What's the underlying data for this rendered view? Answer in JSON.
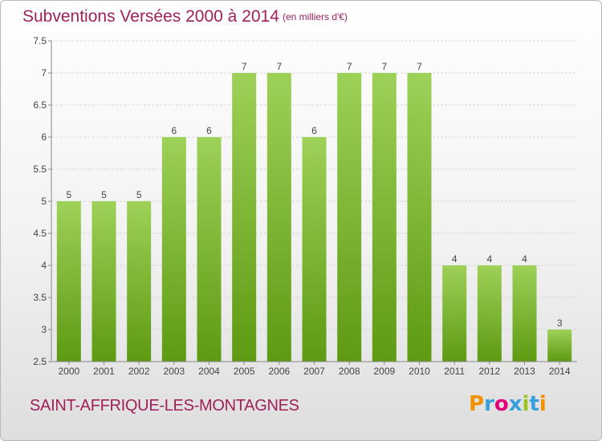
{
  "title": "Subventions Versées 2000 à 2014",
  "subtitle": "(en milliers d'€)",
  "place_name": "SAINT-AFFRIQUE-LES-MONTAGNES",
  "logo": {
    "letters": [
      "P",
      "r",
      "o",
      "x",
      "i",
      "t",
      "i"
    ],
    "colors": [
      "#f39200",
      "#3aa0dc",
      "#e2007a",
      "#3aa0dc",
      "#9bc31c",
      "#3aa0dc",
      "#f39200"
    ]
  },
  "colors": {
    "bar_top": "#9ed158",
    "bar_bottom": "#5e9a12",
    "grid": "#d6d6d6",
    "axis": "#888888",
    "text": "#444444"
  },
  "chart_data": {
    "type": "bar",
    "categories": [
      "2000",
      "2001",
      "2002",
      "2003",
      "2004",
      "2005",
      "2006",
      "2007",
      "2008",
      "2009",
      "2010",
      "2011",
      "2012",
      "2013",
      "2014"
    ],
    "values": [
      5,
      5,
      5,
      6,
      6,
      7,
      7,
      6,
      7,
      7,
      7,
      4,
      4,
      4,
      3
    ],
    "data_labels": [
      "5",
      "5",
      "5",
      "6",
      "6",
      "7",
      "7",
      "6",
      "7",
      "7",
      "7",
      "4",
      "4",
      "4",
      "3"
    ],
    "ylim": [
      2.5,
      7.5
    ],
    "yticks": [
      "2.5",
      "3",
      "3.5",
      "4",
      "4.5",
      "5",
      "5.5",
      "6",
      "6.5",
      "7",
      "7.5"
    ],
    "grid": true,
    "xlabel": "",
    "ylabel": ""
  }
}
